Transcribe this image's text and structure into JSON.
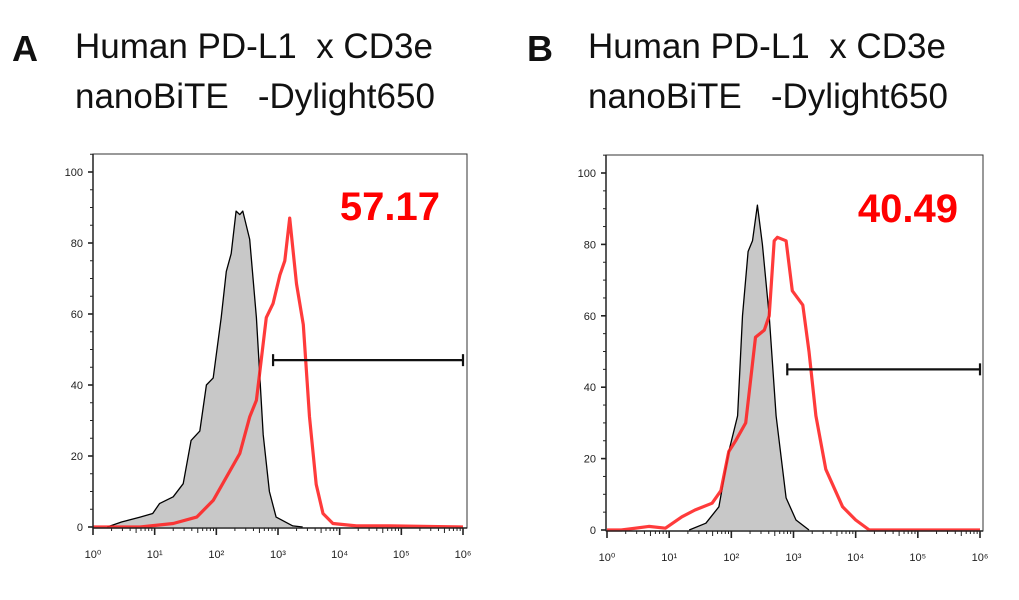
{
  "chart_data": [
    {
      "type": "histogram-overlay",
      "panel_label": "A",
      "title_lines": [
        "Human PD-L1  x CD3e",
        "nanoBiTE   -Dylight650"
      ],
      "x_scale": "log",
      "xlim": [
        1,
        1000000
      ],
      "ylim": [
        0,
        105
      ],
      "x_ticks": [
        1,
        10,
        100,
        1000,
        10000,
        100000,
        1000000
      ],
      "x_tick_labels": [
        "10⁰",
        "10¹",
        "10²",
        "10³",
        "10⁴",
        "10⁵",
        "10⁶"
      ],
      "y_ticks": [
        0,
        20,
        40,
        60,
        80,
        100
      ],
      "y_tick_labels": [
        "0",
        "20",
        "40",
        "60",
        "80",
        "100"
      ],
      "gate_percent_label": "57.17",
      "gate_range": [
        832,
        1000000
      ],
      "gate_y": 47,
      "colors": {
        "control_fill": "#c8c8c8",
        "control_line": "#000000",
        "stained_line": "#ff2020",
        "percent_text": "#ff0000"
      },
      "series": [
        {
          "role": "control",
          "x": [
            1.7,
            2.9,
            5.8,
            9.3,
            12,
            20,
            29,
            39,
            54,
            69,
            89,
            120,
            145,
            174,
            209,
            240,
            269,
            347,
            447,
            575,
            724,
            933,
            1738,
            2512
          ],
          "y": [
            0,
            1.4,
            2.8,
            3.8,
            6.6,
            8.5,
            12.2,
            24.4,
            27,
            40,
            42,
            59,
            72,
            77,
            89,
            88,
            89,
            81,
            59,
            26,
            10,
            2.8,
            0.3,
            0
          ]
        },
        {
          "role": "stained",
          "x": [
            1,
            5.8,
            20,
            48,
            89,
            145,
            240,
            347,
            447,
            646,
            832,
            1072,
            1288,
            1549,
            1995,
            2570,
            3236,
            4169,
            5370,
            7762,
            18621,
            64565,
            1000000
          ],
          "y": [
            0,
            0,
            1,
            2.8,
            7.5,
            14,
            20.7,
            31,
            35.7,
            59,
            63,
            71,
            75,
            87,
            68.5,
            57,
            31,
            12,
            3.8,
            1,
            0.3,
            0.3,
            0
          ]
        }
      ]
    },
    {
      "type": "histogram-overlay",
      "panel_label": "B",
      "title_lines": [
        "Human PD-L1  x CD3e",
        "nanoBiTE   -Dylight650"
      ],
      "x_scale": "log",
      "xlim": [
        1,
        1000000
      ],
      "ylim": [
        0,
        105
      ],
      "x_ticks": [
        1,
        10,
        100,
        1000,
        10000,
        100000,
        1000000
      ],
      "x_tick_labels": [
        "10⁰",
        "10¹",
        "10²",
        "10³",
        "10⁴",
        "10⁵",
        "10⁶"
      ],
      "y_ticks": [
        0,
        20,
        40,
        60,
        80,
        100
      ],
      "y_tick_labels": [
        "0",
        "20",
        "40",
        "60",
        "80",
        "100"
      ],
      "gate_percent_label": "40.49",
      "gate_range": [
        794,
        1000000
      ],
      "gate_y": 45,
      "colors": {
        "control_fill": "#c8c8c8",
        "control_line": "#000000",
        "stained_line": "#ff2020",
        "percent_text": "#ff0000"
      },
      "series": [
        {
          "role": "control",
          "x": [
            21,
            39,
            63,
            91,
            126,
            151,
            186,
            219,
            263,
            316,
            407,
            525,
            759,
            1096,
            1778
          ],
          "y": [
            0,
            1.9,
            6.5,
            22,
            32,
            60,
            78,
            81,
            91,
            80,
            60,
            32,
            9,
            2.8,
            0
          ]
        },
        {
          "role": "stained",
          "x": [
            1,
            1.7,
            4.7,
            8.7,
            16,
            26,
            49,
            68,
            91,
            117,
            170,
            245,
            339,
            407,
            490,
            550,
            759,
            955,
            1413,
            1778,
            2291,
            3311,
            6166,
            10000,
            16596,
            1000000
          ],
          "y": [
            0,
            0,
            1,
            0.5,
            3.7,
            5.6,
            7.5,
            11,
            22,
            25,
            30,
            54,
            56,
            60,
            81,
            82,
            81,
            67,
            63,
            50,
            32,
            17,
            6.5,
            2.8,
            0,
            0
          ]
        }
      ]
    }
  ]
}
